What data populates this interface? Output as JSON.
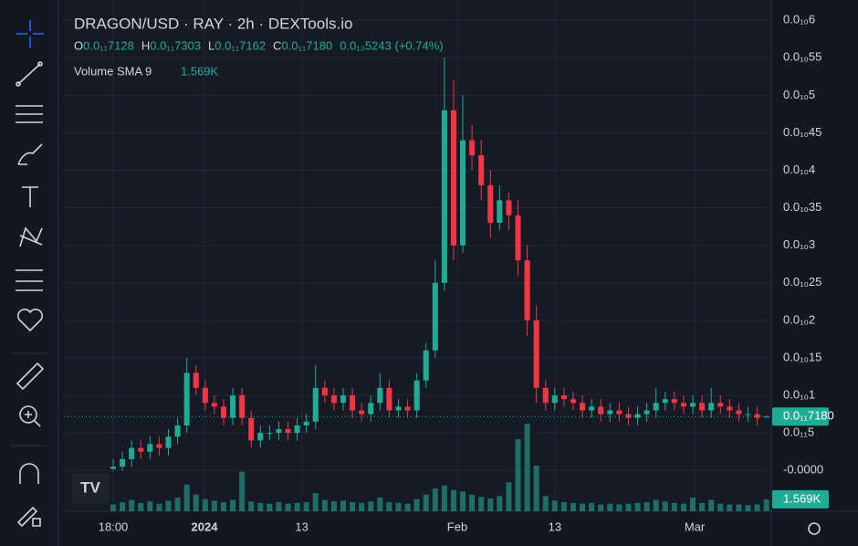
{
  "header": {
    "title": "DRAGON/USD · RAY · 2h · DEXTools.io",
    "ohlc": [
      {
        "key": "O",
        "value": "0.0₁₁7128"
      },
      {
        "key": "H",
        "value": "0.0₁₁7303"
      },
      {
        "key": "L",
        "value": "0.0₁₁7162"
      },
      {
        "key": "C",
        "value": "0.0₁₁7180"
      }
    ],
    "change": "0.0₁₃5243 (+0.74%)",
    "volume_title": "Volume SMA 9",
    "volume_value": "1.569K"
  },
  "chart_data": {
    "type": "candlestick",
    "up_color": "#22ab94",
    "down_color": "#f23645",
    "volume_color": "#1f6e66",
    "xlim": [
      -5.36,
      71.53
    ],
    "xticks": [
      {
        "value": 0,
        "label": "18:00"
      },
      {
        "value": 9.92,
        "label": "2024"
      },
      {
        "value": 20.5,
        "label": "13"
      },
      {
        "value": 37.4,
        "label": "Feb"
      },
      {
        "value": 48.0,
        "label": "13"
      },
      {
        "value": 63.2,
        "label": "Mar"
      }
    ],
    "ylim": [
      -5.45e-12,
      6.27e-11
    ],
    "yticks": [
      {
        "value": 6e-11,
        "label": "0.0₁₀6"
      },
      {
        "value": 5.5e-11,
        "label": "0.0₁₀55"
      },
      {
        "value": 5e-11,
        "label": "0.0₁₀5"
      },
      {
        "value": 4.5e-11,
        "label": "0.0₁₀45"
      },
      {
        "value": 4e-11,
        "label": "0.0₁₀4"
      },
      {
        "value": 3.5e-11,
        "label": "0.0₁₀35"
      },
      {
        "value": 3e-11,
        "label": "0.0₁₀3"
      },
      {
        "value": 2.5e-11,
        "label": "0.0₁₀25"
      },
      {
        "value": 2e-11,
        "label": "0.0₁₀2"
      },
      {
        "value": 1.5e-11,
        "label": "0.0₁₀15"
      },
      {
        "value": 1e-11,
        "label": "0.0₁₀1"
      },
      {
        "value": 5e-12,
        "label": "0.0₁₁5"
      },
      {
        "value": 0,
        "label": "-0.0000"
      }
    ],
    "grid": true,
    "last_price": {
      "value": 7.18e-12,
      "label": "0.0₁₁7180"
    },
    "open": [
      2e-13,
      5e-13,
      1.5e-12,
      3e-12,
      2.5e-12,
      3.5e-12,
      3e-12,
      4.5e-12,
      6e-12,
      1.3e-11,
      1.1e-11,
      9e-12,
      8.5e-12,
      7e-12,
      1e-11,
      7e-12,
      4e-12,
      5e-12,
      5e-12,
      5.5e-12,
      5e-12,
      6e-12,
      6.5e-12,
      1.1e-11,
      1e-11,
      9e-12,
      1e-11,
      8e-12,
      7.5e-12,
      9e-12,
      1.1e-11,
      8e-12,
      8.5e-12,
      8e-12,
      1.2e-11,
      1.6e-11,
      2.5e-11,
      4.8e-11,
      3e-11,
      4.4e-11,
      4.2e-11,
      3.8e-11,
      3.3e-11,
      3.6e-11,
      3.4e-11,
      2.8e-11,
      2e-11,
      1.1e-11,
      9e-12,
      1e-11,
      9.5e-12,
      9e-12,
      8e-12,
      8.5e-12,
      7.5e-12,
      8e-12,
      7.5e-12,
      7e-12,
      7.5e-12,
      8e-12,
      9e-12,
      9.5e-12,
      9e-12,
      8.5e-12,
      9e-12,
      8e-12,
      9e-12,
      8.5e-12,
      8e-12,
      7.5e-12,
      7.5e-12,
      7.128e-12
    ],
    "high": [
      1.5e-12,
      2.5e-12,
      4e-12,
      4e-12,
      4.5e-12,
      4.5e-12,
      5.5e-12,
      7e-12,
      1.5e-11,
      1.4e-11,
      1.2e-11,
      1e-11,
      9.5e-12,
      1.1e-11,
      1.1e-11,
      8e-12,
      6e-12,
      6e-12,
      6.5e-12,
      6.5e-12,
      7e-12,
      7.5e-12,
      1.4e-11,
      1.2e-11,
      1.1e-11,
      1.1e-11,
      1.1e-11,
      9e-12,
      1e-11,
      1.3e-11,
      1.2e-11,
      9.5e-12,
      9.5e-12,
      1.3e-11,
      1.7e-11,
      2.8e-11,
      5.5e-11,
      5.2e-11,
      5e-11,
      4.6e-11,
      4.4e-11,
      4e-11,
      3.8e-11,
      3.7e-11,
      3.6e-11,
      3e-11,
      2.2e-11,
      1.2e-11,
      1.1e-11,
      1.1e-11,
      1.05e-11,
      1e-11,
      9.5e-12,
      9.5e-12,
      9e-12,
      9e-12,
      8.5e-12,
      8.5e-12,
      9e-12,
      1.1e-11,
      1.05e-11,
      1.05e-11,
      1e-11,
      1e-11,
      1e-11,
      1.1e-11,
      1e-11,
      9.5e-12,
      9e-12,
      8.5e-12,
      8.5e-12,
      7.303e-12
    ],
    "low": [
      0,
      0,
      5e-13,
      1.5e-12,
      1.5e-12,
      2e-12,
      2e-12,
      3.5e-12,
      5e-12,
      1e-11,
      8e-12,
      7.5e-12,
      6e-12,
      6e-12,
      6e-12,
      3e-12,
      3e-12,
      4e-12,
      4e-12,
      4e-12,
      4e-12,
      5e-12,
      5.5e-12,
      9e-12,
      8e-12,
      8e-12,
      7e-12,
      6.5e-12,
      6.5e-12,
      8e-12,
      7e-12,
      7e-12,
      7e-12,
      7e-12,
      1.1e-11,
      1.5e-11,
      2.4e-11,
      2.8e-11,
      2.9e-11,
      4e-11,
      3.6e-11,
      3.1e-11,
      3.2e-11,
      3.2e-11,
      2.6e-11,
      1.8e-11,
      9e-12,
      8e-12,
      8e-12,
      8.5e-12,
      8e-12,
      7e-12,
      7e-12,
      6.5e-12,
      6.5e-12,
      6.5e-12,
      6e-12,
      6e-12,
      6.5e-12,
      7e-12,
      8e-12,
      8e-12,
      7.5e-12,
      7.5e-12,
      7e-12,
      7e-12,
      7.5e-12,
      7e-12,
      6.5e-12,
      6.5e-12,
      6e-12,
      7.162e-12
    ],
    "close": [
      5e-13,
      1.5e-12,
      3e-12,
      2.5e-12,
      3.5e-12,
      3e-12,
      4.5e-12,
      6e-12,
      1.3e-11,
      1.1e-11,
      9e-12,
      8.5e-12,
      7e-12,
      1e-11,
      7e-12,
      4e-12,
      5e-12,
      5e-12,
      5.5e-12,
      5e-12,
      6e-12,
      6.5e-12,
      1.1e-11,
      1e-11,
      9e-12,
      1e-11,
      8e-12,
      7.5e-12,
      9e-12,
      1.1e-11,
      8e-12,
      8.5e-12,
      8e-12,
      1.2e-11,
      1.6e-11,
      2.5e-11,
      4.8e-11,
      3e-11,
      4.4e-11,
      4.2e-11,
      3.8e-11,
      3.3e-11,
      3.6e-11,
      3.4e-11,
      2.8e-11,
      2e-11,
      1.1e-11,
      9e-12,
      1e-11,
      9.5e-12,
      9e-12,
      8e-12,
      8.5e-12,
      7.5e-12,
      8e-12,
      7.5e-12,
      7e-12,
      7.5e-12,
      8e-12,
      9e-12,
      9.5e-12,
      9e-12,
      8.5e-12,
      9e-12,
      8e-12,
      9e-12,
      8.5e-12,
      8e-12,
      7.5e-12,
      7.5e-12,
      7e-12,
      7.18e-12
    ],
    "vlim": [
      0,
      12000
    ],
    "volume": [
      900,
      1200,
      1500,
      1100,
      1300,
      1000,
      1400,
      1800,
      3500,
      2200,
      1600,
      1400,
      1200,
      1500,
      5200,
      1300,
      1100,
      1000,
      1200,
      1000,
      1100,
      1200,
      2400,
      1500,
      1300,
      1400,
      1200,
      1100,
      1300,
      1800,
      1200,
      1100,
      1000,
      1600,
      2200,
      3000,
      3400,
      2800,
      2600,
      2200,
      1900,
      1700,
      2000,
      3800,
      9500,
      11500,
      6000,
      2000,
      1400,
      1200,
      1100,
      1000,
      1100,
      900,
      1000,
      900,
      1000,
      1100,
      1200,
      1500,
      1300,
      1100,
      1000,
      1800,
      1100,
      1500,
      1000,
      900,
      900,
      800,
      900,
      1569
    ]
  }
}
